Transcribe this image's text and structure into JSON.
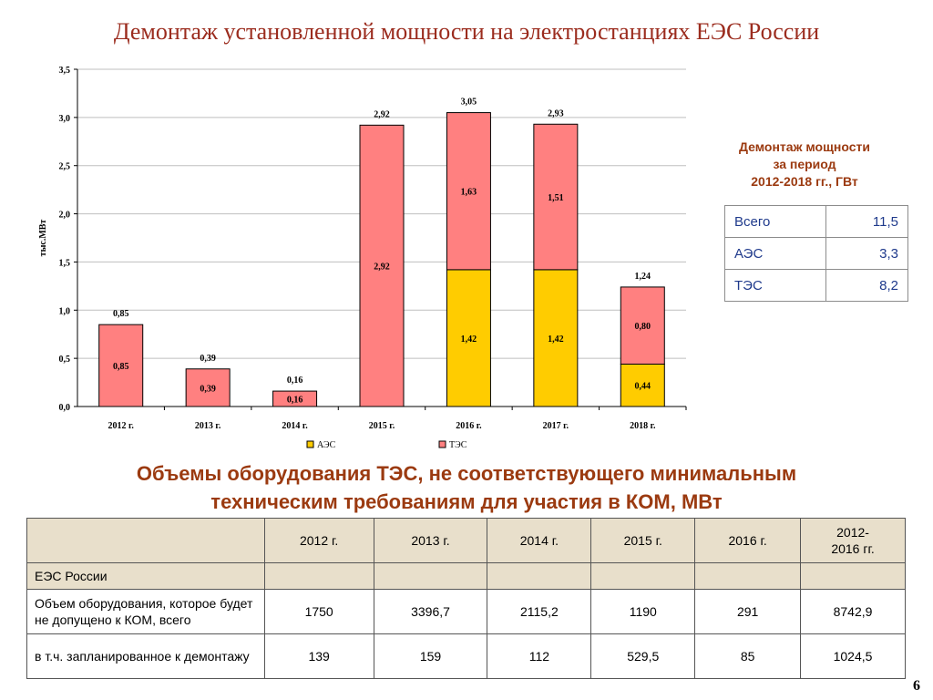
{
  "slide_title": "Демонтаж установленной мощности на электростанциях ЕЭС России",
  "chart_data": {
    "type": "bar",
    "stacked": true,
    "categories": [
      "2012 г.",
      "2013 г.",
      "2014 г.",
      "2015 г.",
      "2016 г.",
      "2017 г.",
      "2018 г."
    ],
    "series": [
      {
        "name": "АЭС",
        "color": "#ffcc00",
        "values": [
          0,
          0,
          0,
          0,
          1.42,
          1.42,
          0.44
        ],
        "labels": [
          "",
          "",
          "",
          "",
          "1,42",
          "1,42",
          "0,44"
        ]
      },
      {
        "name": "ТЭС",
        "color": "#ff8080",
        "values": [
          0.85,
          0.39,
          0.16,
          2.92,
          1.63,
          1.51,
          0.8
        ],
        "labels": [
          "0,85",
          "0,39",
          "0,16",
          "2,92",
          "1,63",
          "1,51",
          "0,80"
        ]
      }
    ],
    "totals": [
      "0,85",
      "0,39",
      "0,16",
      "2,92",
      "3,05",
      "2,93",
      "1,24"
    ],
    "ylabel": "тыс.МВт",
    "ylim": [
      0,
      3.5
    ],
    "yticks": [
      "0,0",
      "0,5",
      "1,0",
      "1,5",
      "2,0",
      "2,5",
      "3,0",
      "3,5"
    ],
    "grid": true,
    "legend": "bottom"
  },
  "side_panel": {
    "title_lines": [
      "Демонтаж мощности",
      "за период",
      "2012-2018 гг., ГВт"
    ],
    "rows": [
      {
        "label": "Всего",
        "value": "11,5"
      },
      {
        "label": "АЭС",
        "value": "3,3"
      },
      {
        "label": "ТЭС",
        "value": "8,2"
      }
    ]
  },
  "subtitle_lines": [
    "Объемы оборудования ТЭС, не соответствующего минимальным",
    "техническим требованиям для участия в КОМ, МВт"
  ],
  "table": {
    "headers": [
      "",
      "2012 г.",
      "2013 г.",
      "2014 г.",
      "2015 г.",
      "2016 г.",
      "2012-\n2016 гг."
    ],
    "section": "ЕЭС России",
    "rows": [
      {
        "label": "Объем оборудования, которое будет не допущено к КОМ, всего",
        "values": [
          "1750",
          "3396,7",
          "2115,2",
          "1190",
          "291",
          "8742,9"
        ]
      },
      {
        "label": "в т.ч. запланированное к демонтажу",
        "values": [
          "139",
          "159",
          "112",
          "529,5",
          "85",
          "1024,5"
        ]
      }
    ]
  },
  "page_number": "6"
}
